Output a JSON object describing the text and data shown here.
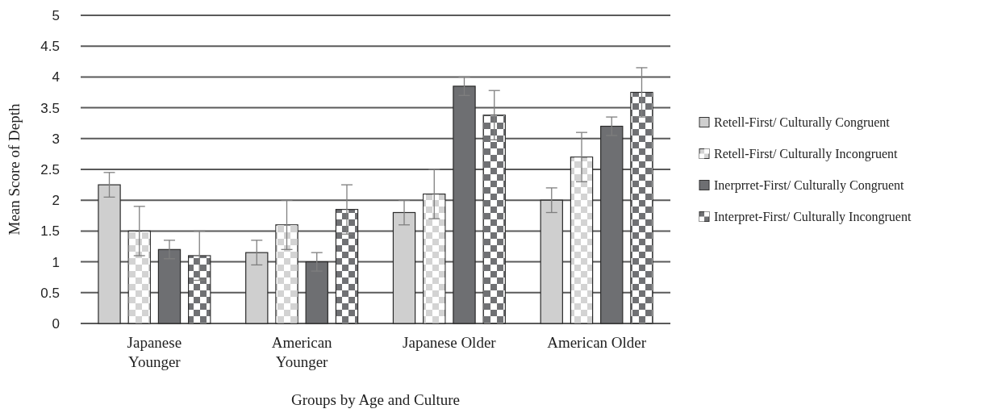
{
  "chart_data": {
    "type": "bar",
    "xlabel": "Groups by Age and Culture",
    "ylabel": "Mean Score of Depth",
    "categories": [
      "Japanese Younger",
      "American Younger",
      "Japanese Older",
      "American Older"
    ],
    "series": [
      {
        "name": "Retell-First/ Culturally Congruent",
        "color": "#cfcfcf",
        "values": [
          2.25,
          1.15,
          1.8,
          2.0
        ],
        "errors": [
          0.2,
          0.2,
          0.2,
          0.2
        ]
      },
      {
        "name": "Retell-First/ Culturally Incongruent",
        "color": "#d3d3d3",
        "values": [
          1.5,
          1.6,
          2.1,
          2.7
        ],
        "errors": [
          0.4,
          0.4,
          0.4,
          0.4
        ]
      },
      {
        "name": "Inerprret-First/ Culturally Congruent",
        "color": "#6e6f72",
        "values": [
          1.2,
          1.0,
          3.85,
          3.2
        ],
        "errors": [
          0.15,
          0.15,
          0.15,
          0.15
        ]
      },
      {
        "name": "Interpret-First/ Culturally Incongruent",
        "color": "#707174",
        "values": [
          1.1,
          1.85,
          3.38,
          3.75
        ],
        "errors": [
          0.4,
          0.4,
          0.4,
          0.4
        ]
      }
    ],
    "ylim": [
      0,
      5
    ],
    "yticks": [
      0,
      {
        "value": 0.5,
        "label": "0.5"
      },
      1,
      {
        "value": 1.5,
        "label": "1.5"
      },
      2,
      {
        "value": 2.5,
        "label": "2.5"
      },
      3,
      {
        "value": 3.5,
        "label": "3.5"
      },
      4,
      {
        "value": 4.5,
        "label": "4.5"
      },
      5
    ],
    "grid": "y",
    "legend": "right"
  }
}
